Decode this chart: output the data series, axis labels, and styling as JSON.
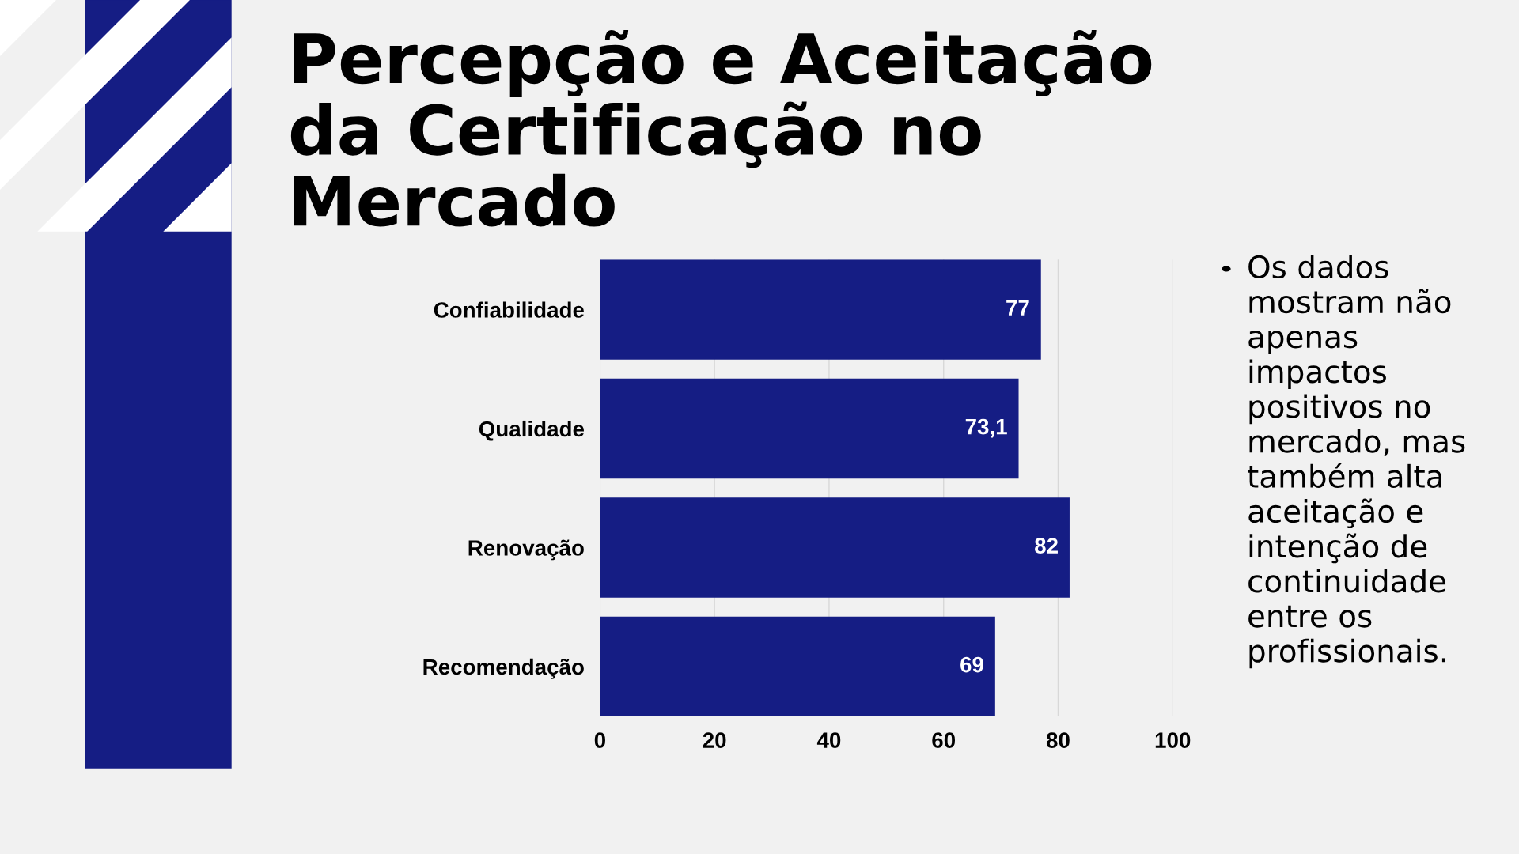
{
  "chart_data": {
    "type": "bar",
    "orientation": "horizontal",
    "title": "Percepção e Aceitação da Certificação no Mercado",
    "categories": [
      "Confiabilidade",
      "Qualidade",
      "Renovação",
      "Recomendação"
    ],
    "values": [
      77,
      73.1,
      82,
      69
    ],
    "value_labels": [
      "77",
      "73,1",
      "82",
      "69"
    ],
    "color": "#151d84",
    "xlim": [
      0,
      100
    ],
    "xticks": [
      0,
      20,
      40,
      60,
      80,
      100
    ],
    "grid": "x",
    "annotations": [
      "Os dados mostram não apenas impactos positivos no mercado, mas também alta aceitação e intenção de continuidade entre os profissionais."
    ]
  }
}
